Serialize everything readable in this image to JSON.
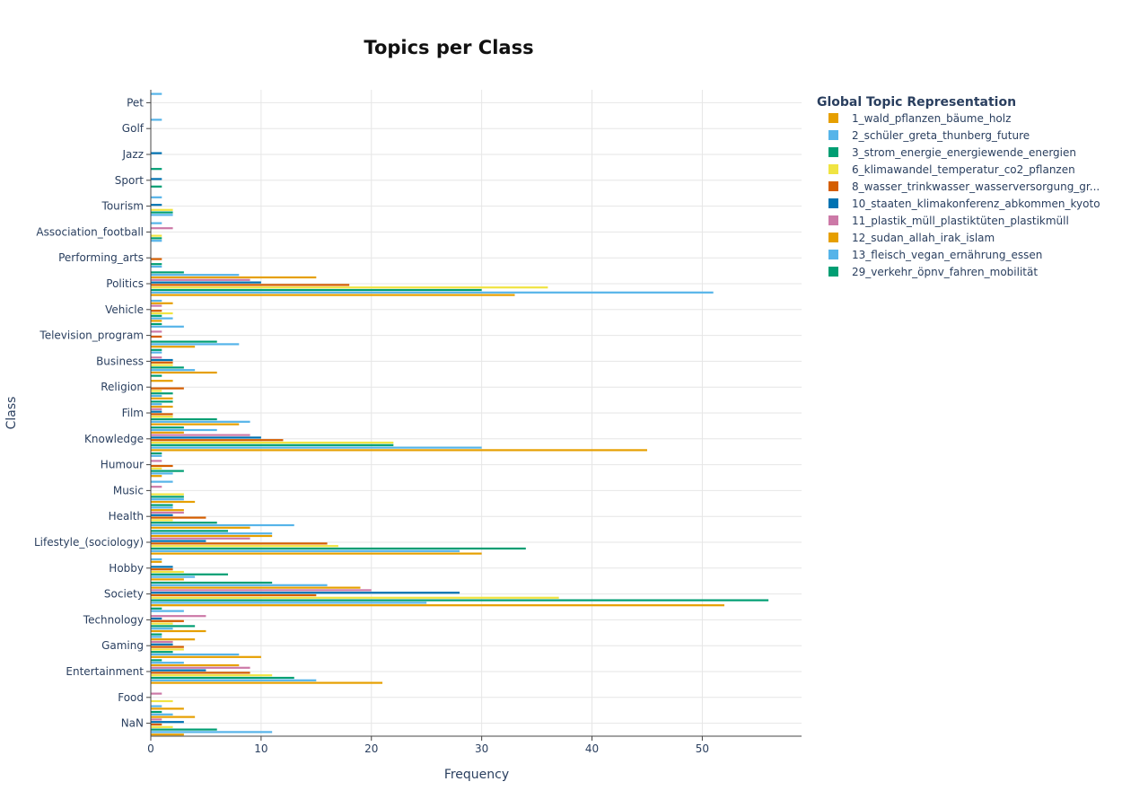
{
  "chart_data": {
    "type": "bar",
    "orientation": "horizontal",
    "title": "Topics per Class",
    "xlabel": "Frequency",
    "ylabel": "Class",
    "xlim": [
      0,
      59
    ],
    "x_ticks": [
      0,
      10,
      20,
      30,
      40,
      50
    ],
    "grid": true,
    "legend_title": "Global Topic Representation",
    "legend_position": "right",
    "categories": [
      "NaN",
      "Food",
      "Entertainment",
      "Gaming",
      "Technology",
      "Society",
      "Hobby",
      "Lifestyle_(sociology)",
      "Health",
      "Music",
      "Humour",
      "Knowledge",
      "Film",
      "Religion",
      "Business",
      "Television_program",
      "Vehicle",
      "Politics",
      "Performing_arts",
      "Association_football",
      "Tourism",
      "Sport",
      "Jazz",
      "Golf",
      "Pet"
    ],
    "series": [
      {
        "name": "1_wald_pflanzen_bäume_holz",
        "color": "#E69F00",
        "values": [
          3,
          3,
          21,
          10,
          5,
          52,
          3,
          30,
          9,
          4,
          1,
          45,
          8,
          2,
          6,
          4,
          1,
          33,
          0,
          0,
          0,
          0,
          0,
          0,
          0
        ]
      },
      {
        "name": "2_schüler_greta_thunberg_future",
        "color": "#56B4E9",
        "values": [
          11,
          1,
          15,
          8,
          2,
          25,
          4,
          28,
          13,
          3,
          2,
          30,
          9,
          1,
          4,
          8,
          2,
          51,
          1,
          1,
          2,
          0,
          0,
          0,
          0
        ]
      },
      {
        "name": "3_strom_energie_energiewende_energien",
        "color": "#009E73",
        "values": [
          6,
          0,
          13,
          2,
          4,
          56,
          7,
          34,
          6,
          3,
          3,
          22,
          6,
          2,
          3,
          6,
          1,
          30,
          1,
          1,
          2,
          1,
          0,
          0,
          0
        ]
      },
      {
        "name": "6_klimawandel_temperatur_co2_pflanzen",
        "color": "#F0E442",
        "values": [
          2,
          2,
          11,
          3,
          2,
          37,
          3,
          17,
          2,
          3,
          1,
          22,
          2,
          1,
          2,
          0,
          2,
          36,
          0,
          1,
          2,
          0,
          0,
          0,
          0
        ]
      },
      {
        "name": "8_wasser_trinkwasser_wasserversorgung_gr...",
        "color": "#D55E00",
        "values": [
          1,
          0,
          9,
          3,
          3,
          15,
          2,
          16,
          5,
          0,
          2,
          12,
          2,
          3,
          2,
          1,
          1,
          18,
          1,
          0,
          0,
          0,
          0,
          0,
          0
        ]
      },
      {
        "name": "10_staaten_klimakonferenz_abkommen_kyoto",
        "color": "#0072B2",
        "values": [
          3,
          0,
          5,
          2,
          1,
          28,
          2,
          5,
          2,
          0,
          0,
          10,
          1,
          0,
          2,
          0,
          0,
          10,
          0,
          0,
          1,
          1,
          1,
          0,
          0
        ]
      },
      {
        "name": "11_plastik_müll_plastiktüten_plastikmüll",
        "color": "#CC79A7",
        "values": [
          1,
          1,
          9,
          2,
          5,
          20,
          0,
          9,
          3,
          1,
          1,
          9,
          1,
          0,
          1,
          1,
          1,
          9,
          0,
          2,
          0,
          0,
          0,
          0,
          0
        ]
      },
      {
        "name": "12_sudan_allah_irak_islam",
        "color": "#E69F00",
        "values": [
          4,
          0,
          8,
          4,
          0,
          19,
          1,
          11,
          3,
          0,
          0,
          3,
          2,
          2,
          0,
          0,
          2,
          15,
          0,
          0,
          0,
          0,
          0,
          0,
          0
        ]
      },
      {
        "name": "13_fleisch_vegan_ernährung_essen",
        "color": "#56B4E9",
        "values": [
          2,
          0,
          3,
          1,
          3,
          16,
          1,
          11,
          2,
          2,
          1,
          6,
          1,
          0,
          1,
          3,
          1,
          8,
          0,
          1,
          1,
          0,
          0,
          1,
          1
        ]
      },
      {
        "name": "29_verkehr_öpnv_fahren_mobilität",
        "color": "#009E73",
        "values": [
          1,
          0,
          1,
          1,
          1,
          11,
          0,
          7,
          2,
          0,
          1,
          3,
          2,
          1,
          1,
          1,
          0,
          3,
          0,
          0,
          0,
          1,
          0,
          0,
          0
        ]
      }
    ]
  }
}
